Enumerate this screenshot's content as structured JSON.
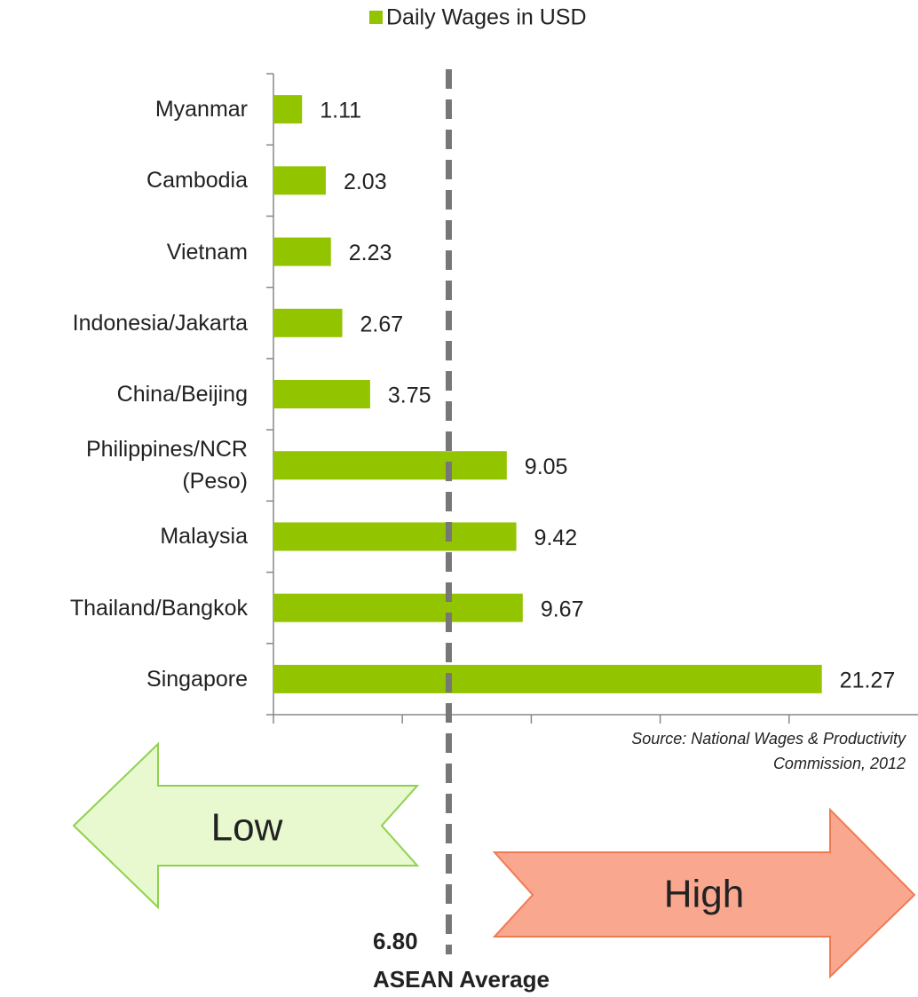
{
  "chart_data": {
    "type": "barh",
    "legend": "Daily Wages in USD",
    "categories": [
      "Myanmar",
      "Cambodia",
      "Vietnam",
      "Indonesia/Jakarta",
      "China/Beijing",
      "Philippines/NCR\n(Peso)",
      "Malaysia",
      "Thailand/Bangkok",
      "Singapore"
    ],
    "values": [
      1.11,
      2.03,
      2.23,
      2.67,
      3.75,
      9.05,
      9.42,
      9.67,
      21.27
    ],
    "color": "#92c400",
    "xlim": [
      0,
      25
    ],
    "xticks": [
      0,
      5,
      10,
      15,
      20
    ],
    "average": {
      "value": 6.8,
      "label": "6.80",
      "name": "ASEAN Average"
    },
    "source": "Source: National Wages & Productivity\nCommission, 2012",
    "annotations": {
      "low": "Low",
      "high": "High"
    }
  }
}
